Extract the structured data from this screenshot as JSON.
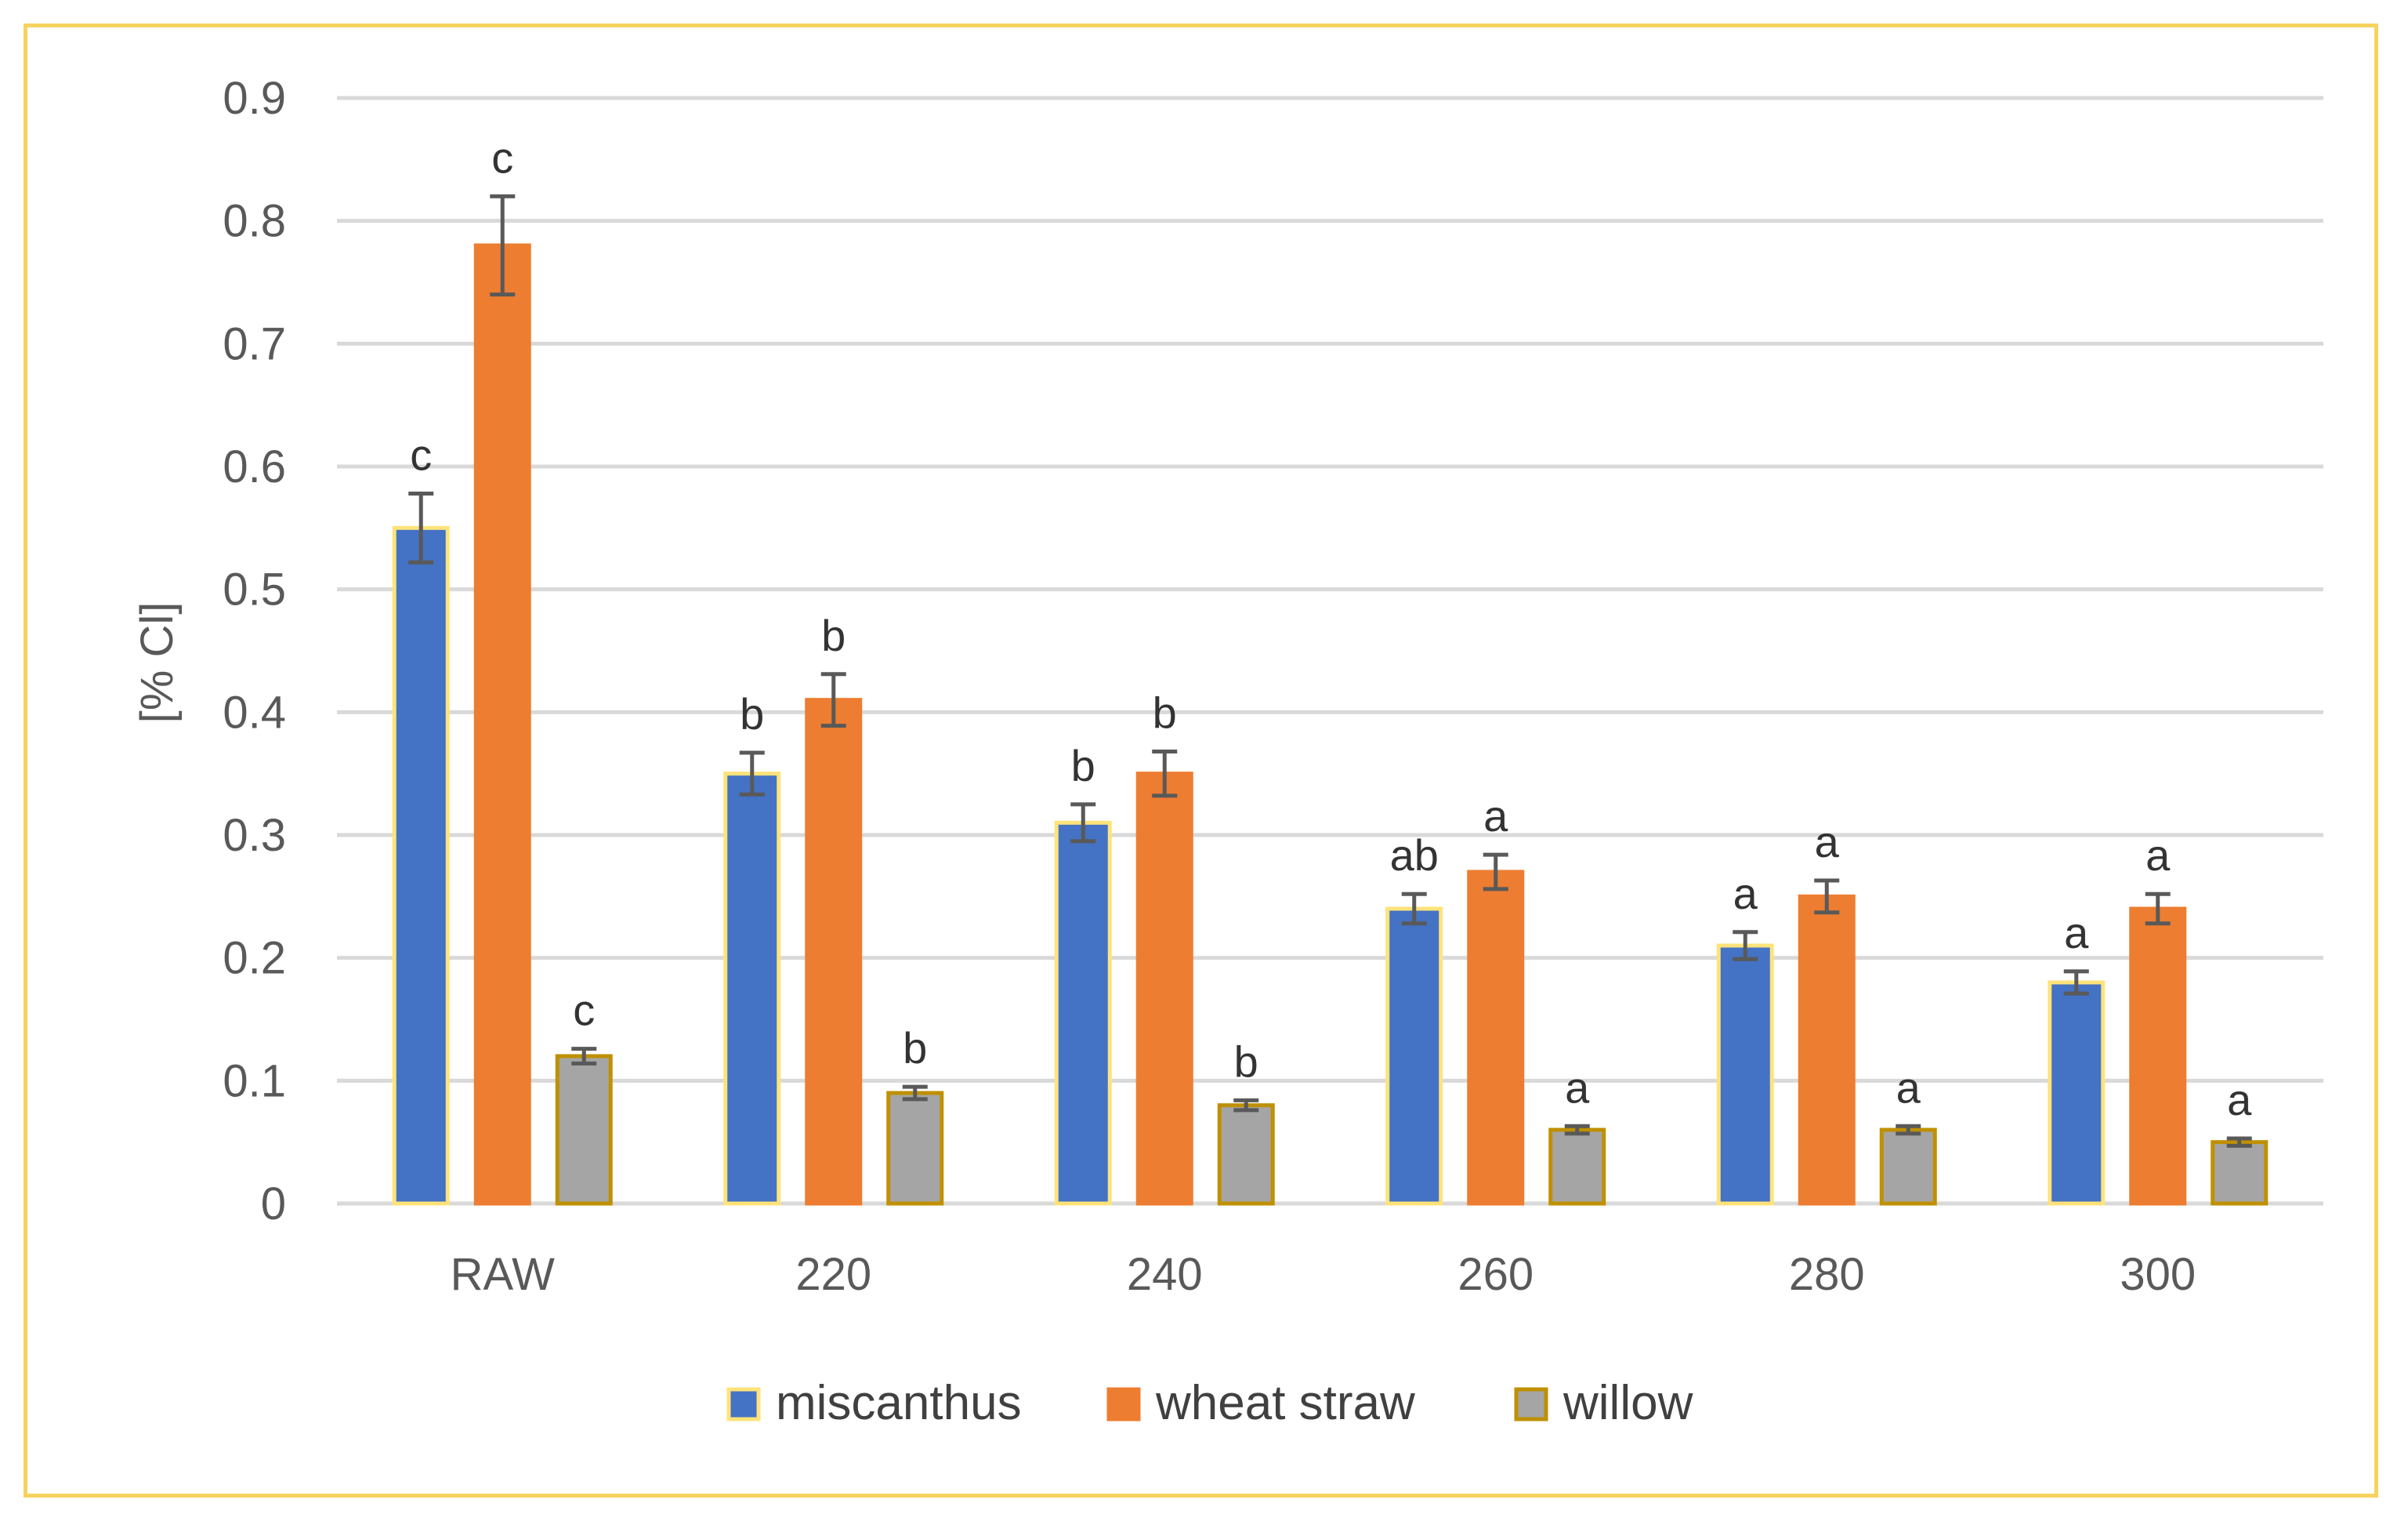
{
  "chart_data": {
    "type": "bar",
    "title": "",
    "xlabel": "",
    "ylabel": "[% Cl]",
    "ylim": [
      0,
      0.9
    ],
    "yticks": [
      "0",
      "0.1",
      "0.2",
      "0.3",
      "0.4",
      "0.5",
      "0.6",
      "0.7",
      "0.8",
      "0.9"
    ],
    "grid": true,
    "legend_position": "bottom",
    "categories": [
      "RAW",
      "220",
      "240",
      "260",
      "280",
      "300"
    ],
    "series": [
      {
        "name": "miscanthus",
        "color": "#4472c4",
        "border_color": "#ffe37a",
        "values": [
          0.55,
          0.35,
          0.31,
          0.24,
          0.21,
          0.18
        ],
        "errors": [
          0.028,
          0.017,
          0.015,
          0.012,
          0.011,
          0.009
        ],
        "labels": [
          "c",
          "b",
          "b",
          "ab",
          "a",
          "a"
        ]
      },
      {
        "name": "wheat straw",
        "color": "#ed7d31",
        "border_color": "#ed7d31",
        "values": [
          0.78,
          0.41,
          0.35,
          0.27,
          0.25,
          0.24
        ],
        "errors": [
          0.04,
          0.021,
          0.018,
          0.014,
          0.013,
          0.012
        ],
        "labels": [
          "c",
          "b",
          "b",
          "a",
          "a",
          "a"
        ]
      },
      {
        "name": "willow",
        "color": "#a5a5a5",
        "border_color": "#bf9000",
        "values": [
          0.12,
          0.09,
          0.08,
          0.06,
          0.06,
          0.05
        ],
        "errors": [
          0.006,
          0.005,
          0.004,
          0.003,
          0.003,
          0.003
        ],
        "labels": [
          "c",
          "b",
          "b",
          "a",
          "a",
          "a"
        ]
      }
    ],
    "error_bar_color": "#595959",
    "gridline_color": "#d9d9d9",
    "frame_color": "#f6d35e"
  }
}
